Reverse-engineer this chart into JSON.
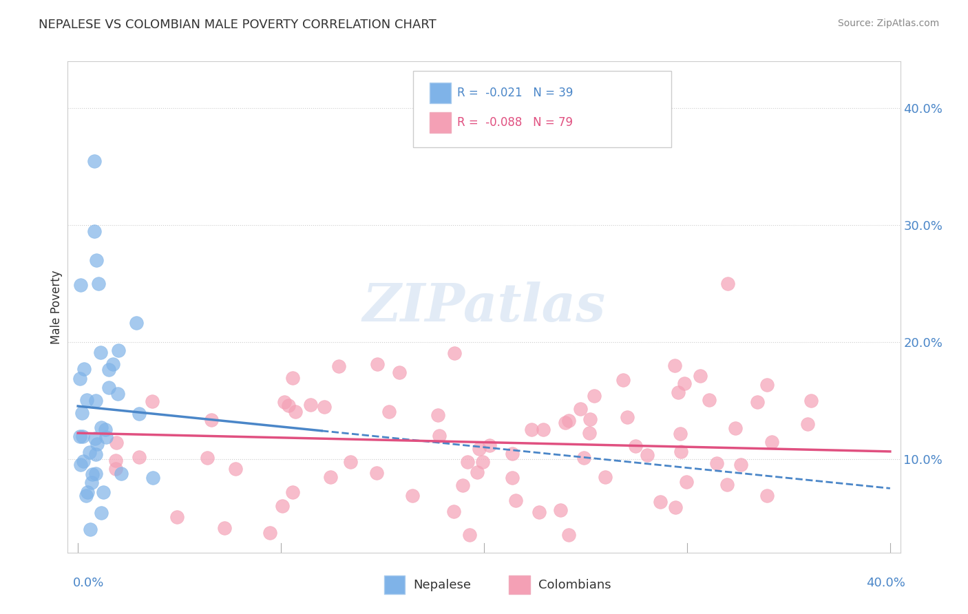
{
  "title": "NEPALESE VS COLOMBIAN MALE POVERTY CORRELATION CHART",
  "source": "Source: ZipAtlas.com",
  "ylabel": "Male Poverty",
  "ytick_vals": [
    0.1,
    0.2,
    0.3,
    0.4
  ],
  "ytick_labels": [
    "10.0%",
    "20.0%",
    "30.0%",
    "40.0%"
  ],
  "xlim": [
    0.0,
    0.4
  ],
  "ylim": [
    0.02,
    0.44
  ],
  "nepalese_R": -0.021,
  "nepalese_N": 39,
  "colombian_R": -0.088,
  "colombian_N": 79,
  "nepalese_color": "#7fb3e8",
  "colombian_color": "#f4a0b5",
  "nepalese_trend_color": "#4a86c8",
  "colombian_trend_color": "#e05080",
  "background_color": "#ffffff",
  "watermark_color": "#d0dff0"
}
